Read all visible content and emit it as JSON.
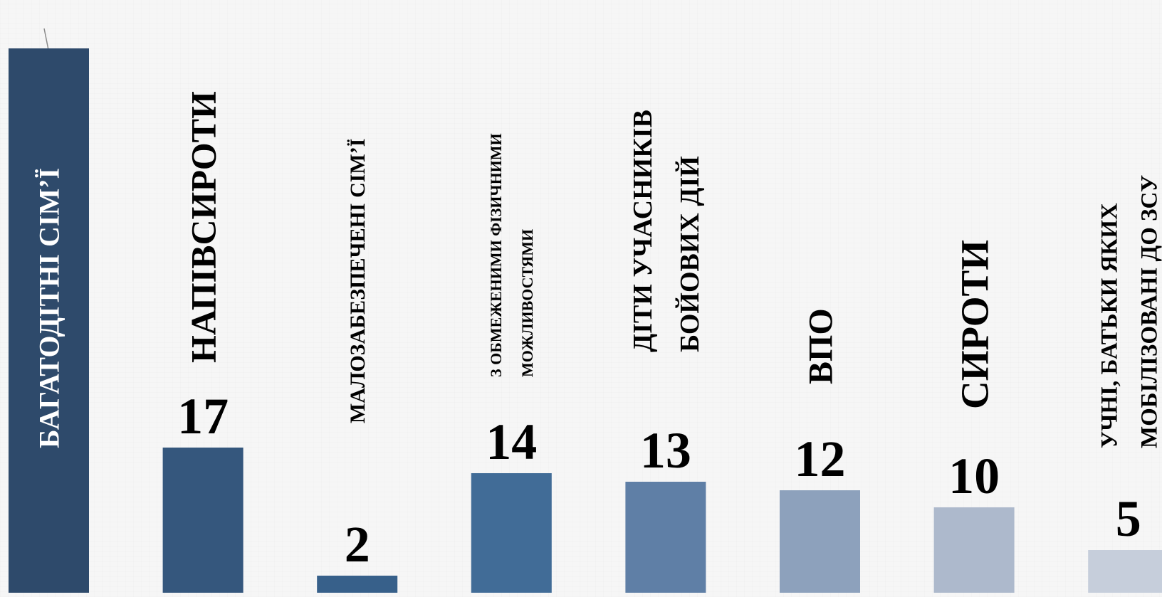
{
  "chart_data": {
    "type": "bar",
    "title": "",
    "xlabel": "",
    "ylabel": "",
    "grid": false,
    "legend": "none",
    "categories": [
      [
        "БАГАТОДІТНІ  СІМ’Ї"
      ],
      [
        "НАПІВСИРОТИ"
      ],
      [
        "МАЛОЗАБЕЗПЕЧЕНІ  СІМ’Ї"
      ],
      [
        "З ОБМЕЖЕНИМИ ФІЗИЧНИМИ",
        "МОЖЛИВОСТЯМИ"
      ],
      [
        "ДІТИ УЧАСНИКІВ",
        "БОЙОВИХ ДІЙ"
      ],
      [
        "ВПО"
      ],
      [
        "СИРОТИ"
      ],
      [
        "УЧНІ, БАТЬКИ ЯКИХ",
        "МОБІЛІЗОВАНІ ДО ЗСУ"
      ]
    ],
    "values": [
      null,
      17,
      2,
      14,
      13,
      12,
      10,
      5
    ],
    "value_labels": [
      "",
      "17",
      "2",
      "14",
      "13",
      "12",
      "10",
      "5"
    ],
    "colors": [
      "#2e4a6b",
      "#35577d",
      "#37608a",
      "#416c97",
      "#5f7fa6",
      "#8da1bc",
      "#adb9cc",
      "#c6cedb"
    ]
  }
}
